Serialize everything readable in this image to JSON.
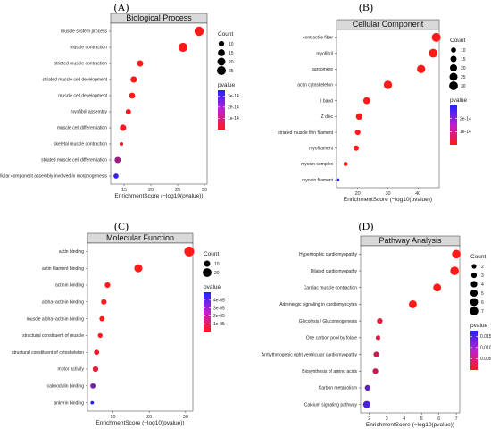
{
  "figure": {
    "legend_color_title": "pvalue",
    "legend_size_title": "Count",
    "xlabel": "EnrichmentScore (−log10(pvalue))"
  },
  "chart_data": [
    {
      "type": "scatter",
      "panel_label": "(A)",
      "title": "Biological Process",
      "xlabel": "EnrichmentScore (−log10(pvalue))",
      "xlim": [
        12.5,
        30.5
      ],
      "x_ticks": [
        15,
        20,
        25,
        30
      ],
      "categories": [
        "muscle system process",
        "muscle contraction",
        "striated muscle contraction",
        "striated muscle cell development",
        "muscle cell development",
        "myofibril assembly",
        "muscle cell differentiation",
        "skeletal muscle contraction",
        "striated muscle cell differentiation",
        "cellular component assembly involved in morphogenesis"
      ],
      "x": [
        29.0,
        26.0,
        18.0,
        16.8,
        16.5,
        15.8,
        14.8,
        14.5,
        13.8,
        13.5
      ],
      "count": [
        27,
        26,
        12,
        13,
        11,
        9,
        13,
        4,
        12,
        8
      ],
      "pvalue": [
        1e-29,
        1e-26,
        1e-18,
        1.6e-17,
        3e-17,
        1.6e-16,
        1.6e-15,
        3.2e-15,
        1.6e-14,
        3.2e-14
      ],
      "size_legend": [
        10,
        15,
        20,
        25
      ],
      "color_legend": [
        "3e-14",
        "2e-14",
        "1e-14"
      ],
      "color_range": [
        0,
        3.5e-14
      ]
    },
    {
      "type": "scatter",
      "panel_label": "(B)",
      "title": "Cellular Component",
      "xlabel": "EnrichmentScore (−log10(pvalue))",
      "xlim": [
        13,
        47
      ],
      "x_ticks": [
        20,
        30,
        40
      ],
      "categories": [
        "contractile fiber",
        "myofibril",
        "sarcomere",
        "actin cytoskeleton",
        "I band",
        "Z disc",
        "striated muscle thin filament",
        "myofilament",
        "myosin complex",
        "myosin filament"
      ],
      "x": [
        46,
        45,
        41,
        30,
        23,
        20.5,
        20,
        19.5,
        16,
        13.5
      ],
      "count": [
        31,
        30,
        27,
        27,
        19,
        17,
        12,
        11,
        7,
        3
      ],
      "pvalue": [
        1e-46,
        1e-45,
        1e-41,
        1e-30,
        1e-23,
        3e-21,
        1e-20,
        3e-20,
        1e-16,
        3e-14
      ],
      "size_legend": [
        10,
        15,
        20,
        25,
        30
      ],
      "color_legend": [
        "2e-14",
        "1e-14"
      ],
      "color_range": [
        0,
        3e-14
      ]
    },
    {
      "type": "scatter",
      "panel_label": "(C)",
      "title": "Molecular Function",
      "xlabel": "EnrichmentScore (−log10(pvalue))",
      "xlim": [
        3,
        32
      ],
      "x_ticks": [
        10,
        20,
        30
      ],
      "categories": [
        "actin binding",
        "actin filament binding",
        "actinin binding",
        "alpha−actinin binding",
        "muscle alpha−actinin binding",
        "structural constituent of muscle",
        "structural constituent of cytoskeleton",
        "motor activity",
        "calmodulin binding",
        "ankyrin binding"
      ],
      "x": [
        31,
        17,
        8.5,
        7.5,
        7.0,
        6.5,
        5.5,
        5.2,
        4.5,
        4.3
      ],
      "count": [
        25,
        17,
        8,
        8,
        7,
        6,
        7,
        8,
        7,
        3
      ],
      "pvalue": [
        1e-31,
        1e-17,
        3e-09,
        3e-08,
        1e-07,
        3e-07,
        3e-06,
        6e-06,
        3.2e-05,
        5e-05
      ],
      "size_legend": [
        10,
        20
      ],
      "color_legend": [
        "4e-05",
        "3e-05",
        "2e-05",
        "1e-05"
      ],
      "color_range": [
        0,
        5e-05
      ]
    },
    {
      "type": "scatter",
      "panel_label": "(D)",
      "title": "Pathway Analysis",
      "xlabel": "EnrichmentScore (−log10(pvalue))",
      "xlim": [
        1.5,
        7.2
      ],
      "x_ticks": [
        2,
        3,
        4,
        5,
        6,
        7
      ],
      "categories": [
        "Hypertrophic cardiomyopathy",
        "Dilated cardiomyopathy",
        "Cardiac muscle contraction",
        "Adrenergic signaling in cardiomyocytes",
        "Glycolysis / Gluconeogenesis",
        "One carbon pool by folate",
        "Arrhythmogenic right ventricular cardiomyopathy",
        "Biosynthesis of amino acids",
        "Carbon metabolism",
        "Calcium signaling pathway"
      ],
      "x": [
        7.0,
        6.9,
        5.9,
        4.5,
        2.6,
        2.5,
        2.4,
        2.35,
        1.9,
        1.85
      ],
      "count": [
        7,
        7,
        6,
        6,
        3,
        2,
        3,
        3,
        3,
        5
      ],
      "pvalue": [
        1e-07,
        1.3e-07,
        1.3e-06,
        3e-05,
        0.0025,
        0.003,
        0.004,
        0.0045,
        0.0126,
        0.0141
      ],
      "size_legend": [
        2,
        3,
        4,
        5,
        6,
        7
      ],
      "color_legend": [
        "0.015",
        "0.010",
        "0.005"
      ],
      "color_range": [
        0,
        0.0175
      ]
    }
  ]
}
